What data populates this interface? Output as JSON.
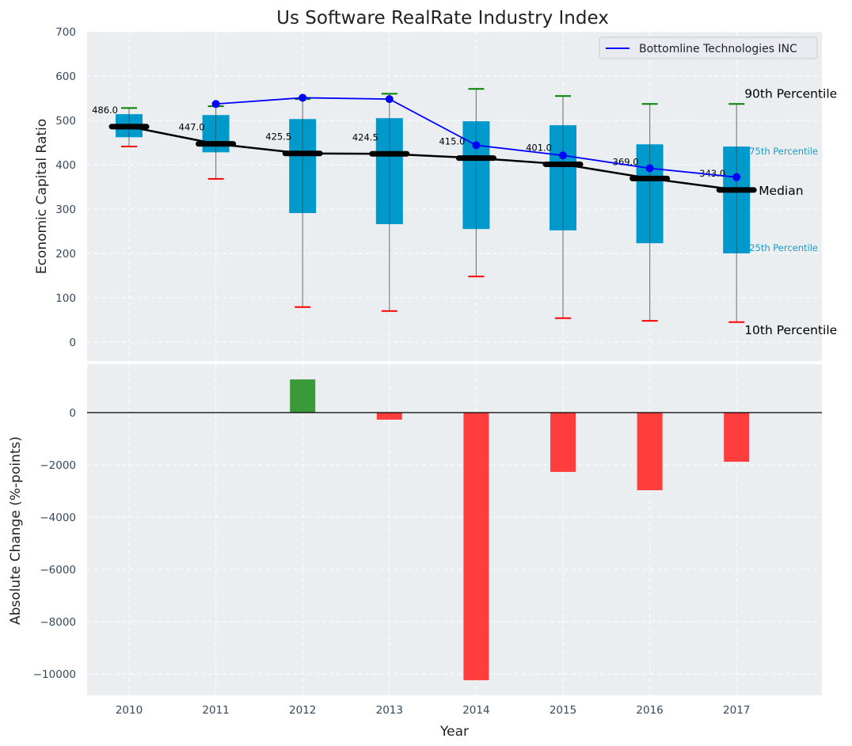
{
  "chart_data": [
    {
      "type": "box",
      "title": "Us Software RealRate Industry Index",
      "xlabel": "",
      "ylabel": "Economic Capital Ratio",
      "ylim": [
        -50,
        700
      ],
      "yticks": [
        0,
        100,
        200,
        300,
        400,
        500,
        600,
        700
      ],
      "grid": true,
      "legend": {
        "position": "top-right",
        "entries": [
          {
            "label": "Bottomline Technologies INC",
            "color": "#0000ff"
          }
        ]
      },
      "categories": [
        "2010",
        "2011",
        "2012",
        "2013",
        "2014",
        "2015",
        "2016",
        "2017"
      ],
      "p10": [
        441,
        368,
        79,
        70,
        148,
        54,
        48,
        45
      ],
      "p25": [
        462,
        428,
        291,
        266,
        255,
        252,
        223,
        200
      ],
      "median": [
        486.0,
        447.0,
        425.5,
        424.5,
        415.0,
        401.0,
        369.0,
        343.0
      ],
      "median_labels": [
        "486.0",
        "447.0",
        "425.5",
        "424.5",
        "415.0",
        "401.0",
        "369.0",
        "343.0"
      ],
      "p75": [
        514,
        512,
        503,
        505,
        498,
        489,
        446,
        441
      ],
      "p90": [
        528,
        532,
        548,
        560,
        571,
        555,
        537,
        537
      ],
      "series": [
        {
          "name": "Bottomline Technologies INC",
          "values": [
            null,
            537,
            551,
            548,
            444,
            421,
            392,
            372
          ],
          "color": "#0000ff"
        }
      ],
      "annotations": {
        "p90": "90th Percentile",
        "p75": "75th Percentile",
        "median": "Median",
        "p25": "25th Percentile",
        "p10": "10th Percentile"
      },
      "colors": {
        "box": "#0099cc",
        "p90": "#008000",
        "p10": "#ff0000",
        "median": "#000000",
        "whisker": "#808080",
        "background": "#eaeef0"
      }
    },
    {
      "type": "bar",
      "xlabel": "Year",
      "ylabel": "Absolute Change (%-points)",
      "ylim": [
        -10800,
        1900
      ],
      "yticks": [
        0,
        -2000,
        -4000,
        -6000,
        -8000,
        -10000
      ],
      "ytick_labels": [
        "0",
        "−2000",
        "−4000",
        "−6000",
        "−8000",
        "−10000"
      ],
      "grid": true,
      "categories": [
        "2010",
        "2011",
        "2012",
        "2013",
        "2014",
        "2015",
        "2016",
        "2017"
      ],
      "values": [
        null,
        null,
        1270,
        -270,
        -10240,
        -2270,
        -2970,
        -1880
      ],
      "colors": {
        "positive": "#3a9a3a",
        "negative": "#ff3d3d",
        "zero_line": "#000000"
      }
    }
  ]
}
